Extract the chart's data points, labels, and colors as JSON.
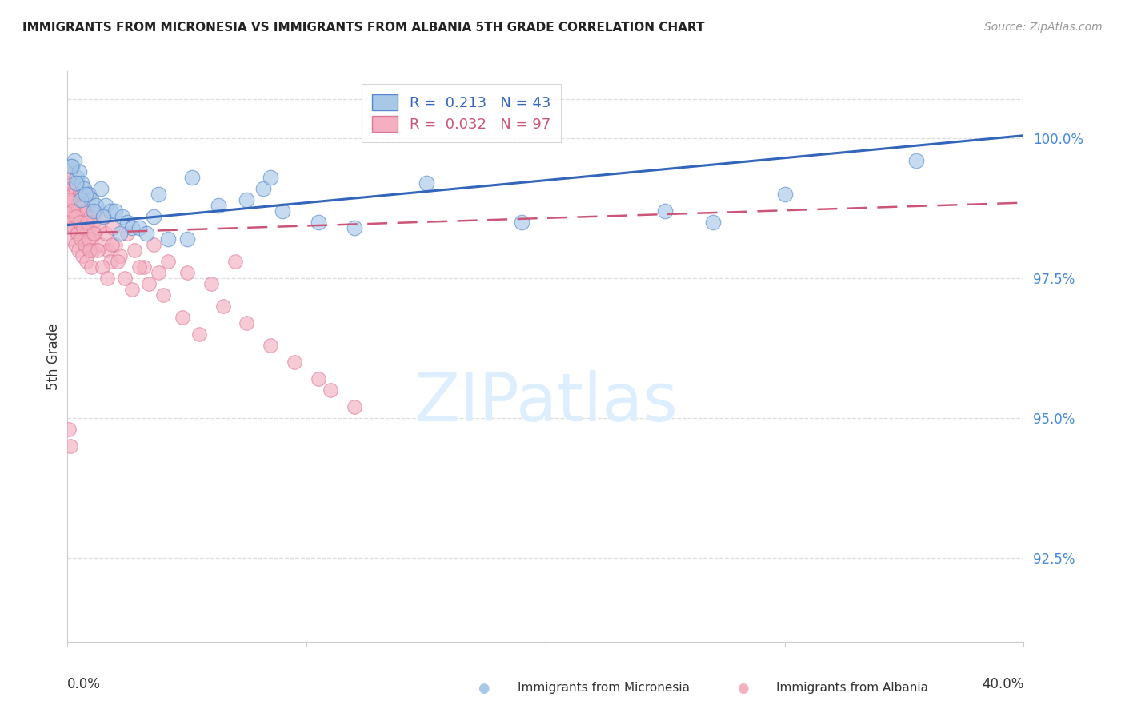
{
  "title": "IMMIGRANTS FROM MICRONESIA VS IMMIGRANTS FROM ALBANIA 5TH GRADE CORRELATION CHART",
  "source": "Source: ZipAtlas.com",
  "ylabel": "5th Grade",
  "xlim": [
    0.0,
    40.0
  ],
  "ylim": [
    91.0,
    101.2
  ],
  "yticks": [
    92.5,
    95.0,
    97.5,
    100.0
  ],
  "ytick_labels": [
    "92.5%",
    "95.0%",
    "97.5%",
    "100.0%"
  ],
  "blue_color": "#a8c8e8",
  "pink_color": "#f4b0c0",
  "blue_line_color": "#3366bb",
  "pink_line_color": "#cc5577",
  "blue_edge_color": "#5588cc",
  "pink_edge_color": "#dd7799",
  "watermark_color": "#ddeeff",
  "grid_color": "#dddddd",
  "tick_label_color": "#4488dd",
  "title_color": "#222222",
  "source_color": "#999999",
  "mic_trend_x0": 0.0,
  "mic_trend_y0": 98.45,
  "mic_trend_x1": 40.0,
  "mic_trend_y1": 100.05,
  "alb_trend_x0": 0.0,
  "alb_trend_y0": 98.3,
  "alb_trend_x1": 40.0,
  "alb_trend_y1": 98.85,
  "micronesia_x": [
    0.2,
    0.3,
    0.4,
    0.5,
    0.6,
    0.7,
    0.9,
    1.0,
    1.2,
    1.4,
    1.6,
    1.8,
    2.0,
    2.3,
    2.5,
    2.7,
    3.0,
    3.3,
    3.6,
    4.2,
    5.2,
    6.3,
    7.5,
    8.2,
    9.0,
    10.5,
    12.0,
    15.0,
    19.0,
    25.0,
    30.0,
    35.5,
    0.15,
    0.35,
    0.55,
    0.75,
    1.1,
    1.5,
    2.2,
    3.8,
    5.0,
    8.5,
    27.0
  ],
  "micronesia_y": [
    99.5,
    99.6,
    99.3,
    99.4,
    99.2,
    99.1,
    99.0,
    98.9,
    98.8,
    99.1,
    98.8,
    98.7,
    98.7,
    98.6,
    98.5,
    98.4,
    98.4,
    98.3,
    98.6,
    98.2,
    99.3,
    98.8,
    98.9,
    99.1,
    98.7,
    98.5,
    98.4,
    99.2,
    98.5,
    98.7,
    99.0,
    99.6,
    99.5,
    99.2,
    98.9,
    99.0,
    98.7,
    98.6,
    98.3,
    99.0,
    98.2,
    99.3,
    98.5
  ],
  "albania_x": [
    0.05,
    0.08,
    0.1,
    0.12,
    0.15,
    0.18,
    0.2,
    0.22,
    0.25,
    0.28,
    0.3,
    0.32,
    0.35,
    0.38,
    0.4,
    0.42,
    0.45,
    0.48,
    0.5,
    0.52,
    0.55,
    0.58,
    0.6,
    0.62,
    0.65,
    0.68,
    0.7,
    0.75,
    0.8,
    0.85,
    0.9,
    0.95,
    1.0,
    1.05,
    1.1,
    1.15,
    1.2,
    1.3,
    1.4,
    1.5,
    1.6,
    1.7,
    1.8,
    1.9,
    2.0,
    2.2,
    2.5,
    2.8,
    3.2,
    3.6,
    4.2,
    5.0,
    6.0,
    7.0,
    0.06,
    0.09,
    0.13,
    0.17,
    0.21,
    0.26,
    0.31,
    0.36,
    0.41,
    0.46,
    0.51,
    0.56,
    0.61,
    0.66,
    0.72,
    0.78,
    0.82,
    0.88,
    0.92,
    0.98,
    1.08,
    1.25,
    1.45,
    1.65,
    1.85,
    2.1,
    2.4,
    2.7,
    3.0,
    3.4,
    4.0,
    4.8,
    5.5,
    6.5,
    7.5,
    8.5,
    9.5,
    10.5,
    11.0,
    12.0,
    3.8,
    0.07,
    0.11
  ],
  "albania_y": [
    99.2,
    99.5,
    99.1,
    98.8,
    99.3,
    98.7,
    98.5,
    99.0,
    98.9,
    98.6,
    98.4,
    99.1,
    98.7,
    98.3,
    99.2,
    98.8,
    98.5,
    99.0,
    98.6,
    98.3,
    98.8,
    98.4,
    99.0,
    98.6,
    98.2,
    98.8,
    98.5,
    98.3,
    98.7,
    98.4,
    99.0,
    98.6,
    98.2,
    98.0,
    98.5,
    98.3,
    98.7,
    98.4,
    98.1,
    98.6,
    98.3,
    98.0,
    97.8,
    98.4,
    98.1,
    97.9,
    98.3,
    98.0,
    97.7,
    98.1,
    97.8,
    97.6,
    97.4,
    97.8,
    99.4,
    98.9,
    98.6,
    98.2,
    98.7,
    98.4,
    98.1,
    98.6,
    98.3,
    98.0,
    98.5,
    98.2,
    97.9,
    98.4,
    98.1,
    97.8,
    98.5,
    98.2,
    98.0,
    97.7,
    98.3,
    98.0,
    97.7,
    97.5,
    98.1,
    97.8,
    97.5,
    97.3,
    97.7,
    97.4,
    97.2,
    96.8,
    96.5,
    97.0,
    96.7,
    96.3,
    96.0,
    95.7,
    95.5,
    95.2,
    97.6,
    94.8,
    94.5
  ]
}
